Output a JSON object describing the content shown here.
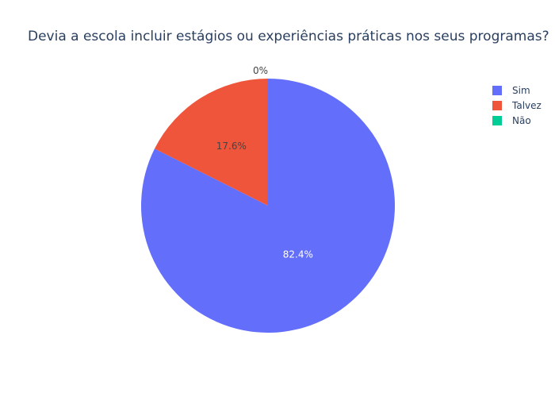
{
  "chart_data": {
    "type": "pie",
    "title": "Devia a escola incluir estágios ou experiências práticas nos seus programas?",
    "categories": [
      "Sim",
      "Talvez",
      "Não"
    ],
    "values": [
      82.4,
      17.6,
      0
    ],
    "data_labels": [
      "82.4%",
      "17.6%",
      "0%"
    ],
    "colors": [
      "#636efa",
      "#ef553b",
      "#00cc96"
    ],
    "legend": {
      "position": "top-right",
      "entries": [
        "Sim",
        "Talvez",
        "Não"
      ]
    },
    "direction": "clockwise",
    "start_angle_deg": 90
  }
}
